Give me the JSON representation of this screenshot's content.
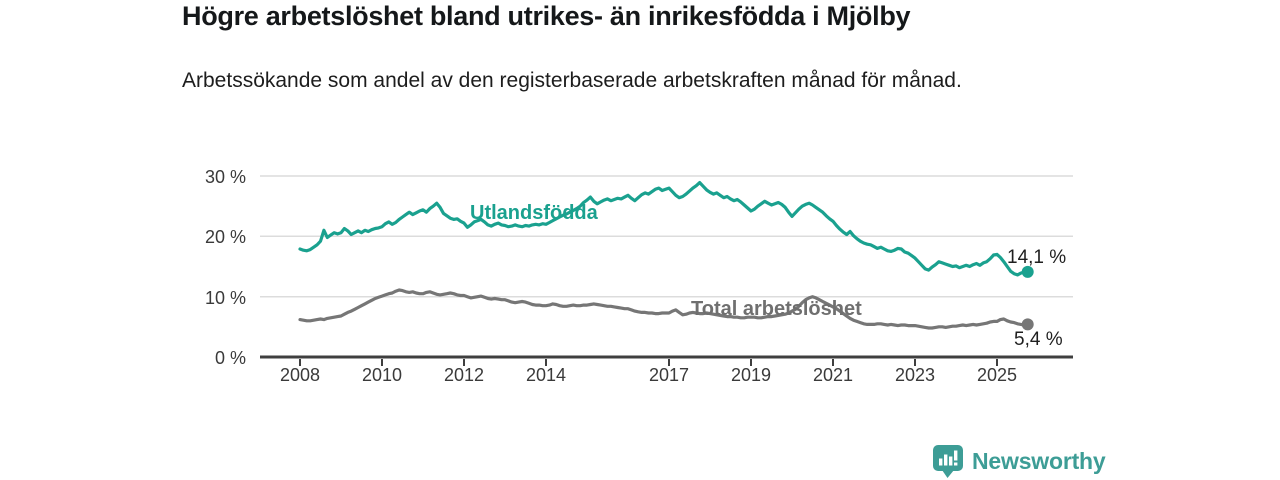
{
  "header": {
    "title": "Högre arbetslöshet bland utrikes- än inrikesfödda i Mjölby",
    "subtitle": "Arbetssökande som andel av den registerbaserade arbetskraften månad för månad."
  },
  "footer": {
    "brand": "Newsworthy"
  },
  "colors": {
    "accent_teal": "#1aa18f",
    "series_gray": "#767676",
    "brand_teal": "#3d9d96",
    "axis": "#3f3f3f",
    "gridline": "#dcdcdc"
  },
  "chart_data": {
    "type": "line",
    "title": "Högre arbetslöshet bland utrikes- än inrikesfödda i Mjölby",
    "subtitle": "Arbetssökande som andel av den registerbaserade arbetskraften månad för månad.",
    "xlabel": "",
    "ylabel": "",
    "unit": "%",
    "grid": "horizontal",
    "legend_position": "inline-labels",
    "ylim": [
      0,
      30
    ],
    "y_tick_labels": [
      "30 %",
      "20 %",
      "10 %",
      "0 %"
    ],
    "x_start": 2008.0,
    "x_step_years": 0.0833333,
    "x_end": "2025 (oktober)",
    "x_tick_years": [
      2008,
      2010,
      2012,
      2014,
      2017,
      2019,
      2021,
      2023,
      2025
    ],
    "x_tick_labels": [
      "2008",
      "2010",
      "2012",
      "2014",
      "2017",
      "2019",
      "2021",
      "2023",
      "2025"
    ],
    "series": [
      {
        "name": "Utlandsfödda",
        "color": "#1aa18f",
        "end_value": 14.1,
        "end_label": "14,1 %",
        "values": [
          17.9,
          17.7,
          17.6,
          17.8,
          18.2,
          18.6,
          19.2,
          21.0,
          19.8,
          20.2,
          20.6,
          20.4,
          20.6,
          21.3,
          20.9,
          20.3,
          20.6,
          20.9,
          20.6,
          21.0,
          20.8,
          21.1,
          21.3,
          21.4,
          21.6,
          22.1,
          22.4,
          22.0,
          22.3,
          22.8,
          23.2,
          23.6,
          24.0,
          23.6,
          23.9,
          24.2,
          24.4,
          24.0,
          24.6,
          25.0,
          25.5,
          24.8,
          23.8,
          23.4,
          23.0,
          22.8,
          22.9,
          22.5,
          22.2,
          21.5,
          21.9,
          22.4,
          22.6,
          22.8,
          22.4,
          21.9,
          21.7,
          22.0,
          22.2,
          21.9,
          21.8,
          21.6,
          21.7,
          21.9,
          21.7,
          21.6,
          21.8,
          21.7,
          21.9,
          22.0,
          21.9,
          22.1,
          22.0,
          22.3,
          22.6,
          22.9,
          23.2,
          23.5,
          23.7,
          24.0,
          24.3,
          24.6,
          25.0,
          25.6,
          26.0,
          26.5,
          25.8,
          25.4,
          25.7,
          26.0,
          26.2,
          25.9,
          26.1,
          26.3,
          26.2,
          26.5,
          26.8,
          26.3,
          25.9,
          26.4,
          26.9,
          27.2,
          27.0,
          27.4,
          27.8,
          28.0,
          27.6,
          27.8,
          28.0,
          27.4,
          26.8,
          26.4,
          26.6,
          27.0,
          27.5,
          28.0,
          28.4,
          28.9,
          28.3,
          27.7,
          27.3,
          27.0,
          27.2,
          26.8,
          26.4,
          26.6,
          26.2,
          25.9,
          26.1,
          25.7,
          25.2,
          24.7,
          24.2,
          24.5,
          25.0,
          25.4,
          25.8,
          25.5,
          25.2,
          25.4,
          25.6,
          25.3,
          24.8,
          24.0,
          23.3,
          23.9,
          24.5,
          25.0,
          25.3,
          25.5,
          25.2,
          24.8,
          24.4,
          24.0,
          23.4,
          22.9,
          22.5,
          21.8,
          21.2,
          20.7,
          20.3,
          20.8,
          20.1,
          19.6,
          19.2,
          18.9,
          18.7,
          18.6,
          18.3,
          18.0,
          18.2,
          17.9,
          17.6,
          17.5,
          17.7,
          18.0,
          17.9,
          17.4,
          17.2,
          16.8,
          16.4,
          15.8,
          15.2,
          14.6,
          14.4,
          14.9,
          15.3,
          15.8,
          15.6,
          15.4,
          15.2,
          15.0,
          15.1,
          14.8,
          15.0,
          15.2,
          15.0,
          15.3,
          15.5,
          15.2,
          15.6,
          15.8,
          16.3,
          16.9,
          17.0,
          16.5,
          15.8,
          15.0,
          14.2,
          13.8,
          13.6,
          13.9,
          14.1,
          14.1
        ]
      },
      {
        "name": "Total arbetslöshet",
        "color": "#767676",
        "end_value": 5.4,
        "end_label": "5,4 %",
        "values": [
          6.2,
          6.1,
          6.0,
          6.0,
          6.1,
          6.2,
          6.3,
          6.2,
          6.4,
          6.5,
          6.6,
          6.7,
          6.8,
          7.1,
          7.4,
          7.6,
          7.9,
          8.2,
          8.5,
          8.8,
          9.1,
          9.4,
          9.7,
          9.9,
          10.1,
          10.3,
          10.5,
          10.6,
          10.9,
          11.1,
          11.0,
          10.8,
          10.7,
          10.8,
          10.6,
          10.5,
          10.5,
          10.7,
          10.8,
          10.6,
          10.4,
          10.3,
          10.4,
          10.5,
          10.6,
          10.5,
          10.3,
          10.2,
          10.2,
          10.0,
          9.8,
          9.9,
          10.0,
          10.1,
          9.9,
          9.7,
          9.6,
          9.7,
          9.6,
          9.5,
          9.5,
          9.3,
          9.1,
          9.0,
          9.1,
          9.2,
          9.1,
          8.9,
          8.7,
          8.6,
          8.6,
          8.5,
          8.5,
          8.6,
          8.8,
          8.7,
          8.5,
          8.4,
          8.4,
          8.5,
          8.6,
          8.5,
          8.5,
          8.6,
          8.6,
          8.7,
          8.8,
          8.7,
          8.6,
          8.5,
          8.4,
          8.4,
          8.3,
          8.2,
          8.1,
          8.0,
          8.0,
          7.8,
          7.6,
          7.5,
          7.4,
          7.4,
          7.3,
          7.3,
          7.2,
          7.2,
          7.3,
          7.3,
          7.3,
          7.6,
          7.8,
          7.4,
          7.0,
          7.1,
          7.3,
          7.4,
          7.3,
          7.2,
          7.2,
          7.3,
          7.2,
          7.1,
          7.0,
          6.9,
          6.8,
          6.7,
          6.7,
          6.6,
          6.6,
          6.5,
          6.5,
          6.6,
          6.6,
          6.6,
          6.5,
          6.5,
          6.6,
          6.7,
          6.7,
          6.8,
          6.9,
          7.0,
          7.1,
          7.3,
          7.6,
          7.9,
          8.4,
          9.0,
          9.5,
          9.8,
          10.0,
          9.8,
          9.5,
          9.2,
          8.9,
          8.6,
          8.3,
          8.0,
          7.6,
          7.2,
          6.8,
          6.4,
          6.1,
          5.9,
          5.7,
          5.5,
          5.4,
          5.4,
          5.4,
          5.5,
          5.5,
          5.4,
          5.3,
          5.4,
          5.3,
          5.2,
          5.3,
          5.3,
          5.2,
          5.2,
          5.2,
          5.1,
          5.0,
          4.9,
          4.8,
          4.8,
          4.9,
          5.0,
          5.0,
          4.9,
          5.0,
          5.1,
          5.1,
          5.2,
          5.3,
          5.2,
          5.3,
          5.4,
          5.3,
          5.4,
          5.5,
          5.6,
          5.8,
          5.9,
          5.9,
          6.2,
          6.3,
          6.0,
          5.8,
          5.7,
          5.5,
          5.4,
          5.3,
          5.4
        ]
      }
    ]
  }
}
